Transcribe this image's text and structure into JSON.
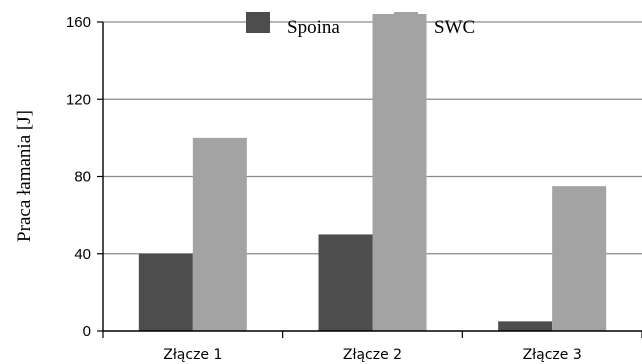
{
  "chart_data": {
    "type": "bar",
    "title": "",
    "xlabel": "",
    "ylabel": "Praca łamania [J]",
    "categories": [
      "Złącze 1",
      "Złącze 2",
      "Złącze 3"
    ],
    "series": [
      {
        "name": "Spoina",
        "values": [
          40,
          50,
          5
        ],
        "color": "#4d4d4d"
      },
      {
        "name": "SWC",
        "values": [
          100,
          165,
          75
        ],
        "color": "#a3a3a3"
      }
    ],
    "ylim": [
      0,
      160
    ],
    "yticks": [
      0,
      40,
      80,
      120,
      160
    ],
    "grid": true,
    "legend_position": "top-center"
  }
}
